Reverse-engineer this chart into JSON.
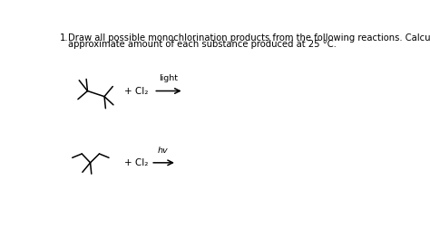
{
  "bg_color": "#ffffff",
  "text_color": "#000000",
  "title_num": "1.",
  "title_line1": "Draw all possible monochlorination products from the following reactions. Calculate the",
  "title_line2": "approximate amount of each substance produced at 25 °C.",
  "title_fontsize": 7.2,
  "mol1_plus_cl2": "+ Cl₂",
  "mol1_condition": "light",
  "mol2_plus_cl2": "+ Cl₂",
  "mol2_condition": "hv",
  "label_fontsize": 7.5,
  "condition_fontsize": 6.8
}
